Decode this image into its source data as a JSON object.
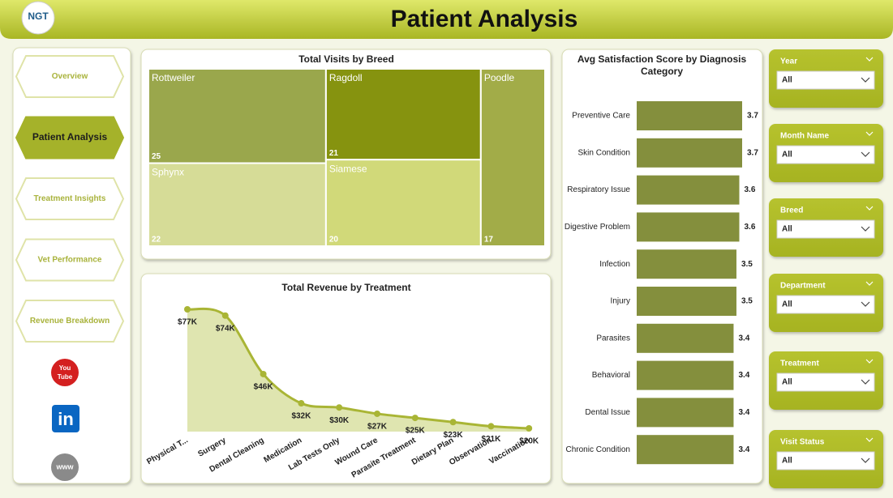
{
  "header": {
    "logo": "NGT",
    "title": "Patient Analysis"
  },
  "nav": {
    "items": [
      "Overview",
      "Patient Analysis",
      "Treatment Insights",
      "Vet Performance",
      "Revenue Breakdown"
    ],
    "active": 1
  },
  "icons": {
    "youtube": [
      "You",
      "Tube"
    ],
    "linkedin": "in",
    "web": "www"
  },
  "chart_data": [
    {
      "type": "treemap",
      "title": "Total Visits by Breed",
      "categories": [
        "Rottweiler",
        "Ragdoll",
        "Poodle",
        "Sphynx",
        "Siamese"
      ],
      "values": [
        25,
        21,
        17,
        22,
        20
      ],
      "colors": [
        "#9aa74c",
        "#86930f",
        "#a2ac48",
        "#d6dc97",
        "#d1d979"
      ]
    },
    {
      "type": "area",
      "title": "Total Revenue by Treatment",
      "categories": [
        "Physical T...",
        "Surgery",
        "Dental Cleaning",
        "Medication",
        "Lab Tests Only",
        "Wound Care",
        "Parasite Treatment",
        "Dietary Plan",
        "Observation",
        "Vaccination"
      ],
      "values": [
        77000,
        74000,
        46000,
        32000,
        30000,
        27000,
        25000,
        23000,
        21000,
        20000
      ],
      "value_labels": [
        "$77K",
        "$74K",
        "$46K",
        "$32K",
        "$30K",
        "$27K",
        "$25K",
        "$23K",
        "$21K",
        "$20K"
      ],
      "color": "#a9b535",
      "fill": "#dfe5b0"
    },
    {
      "type": "hbar",
      "title": "Avg Satisfaction Score by Diagnosis Category",
      "categories": [
        "Preventive Care",
        "Skin Condition",
        "Respiratory Issue",
        "Digestive Problem",
        "Infection",
        "Injury",
        "Parasites",
        "Behavioral",
        "Dental Issue",
        "Chronic Condition"
      ],
      "values": [
        3.7,
        3.7,
        3.6,
        3.6,
        3.5,
        3.5,
        3.4,
        3.4,
        3.4,
        3.4
      ],
      "color": "#848f3d"
    }
  ],
  "filters": [
    {
      "label": "Year",
      "value": "All"
    },
    {
      "label": "Month Name",
      "value": "All"
    },
    {
      "label": "Breed",
      "value": "All"
    },
    {
      "label": "Department",
      "value": "All"
    },
    {
      "label": "Treatment",
      "value": "All"
    },
    {
      "label": "Visit Status",
      "value": "All"
    }
  ]
}
